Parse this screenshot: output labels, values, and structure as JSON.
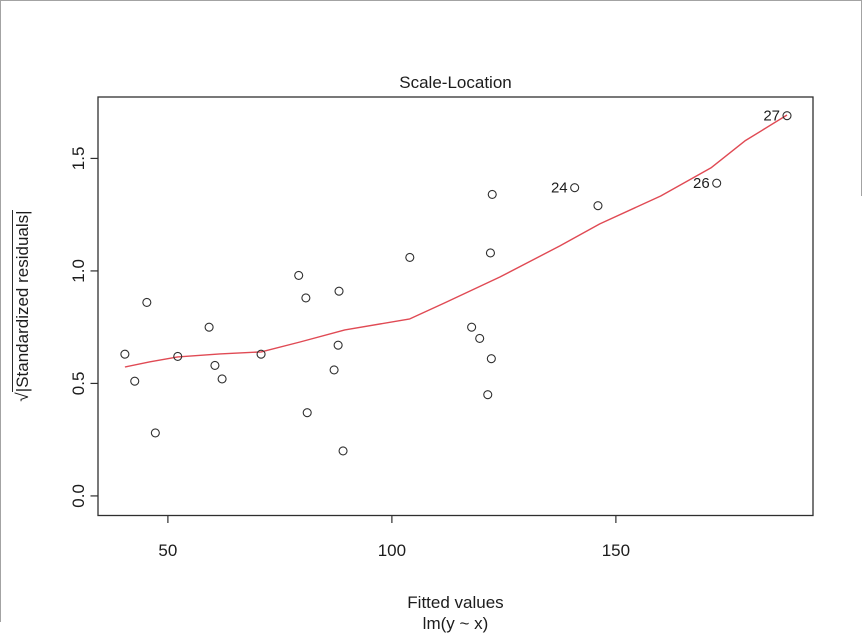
{
  "window": {
    "background": "#ffffff",
    "border_color": "#a3a3a3"
  },
  "chart_data": {
    "type": "scatter",
    "title": "Scale-Location",
    "xlabel": "Fitted values",
    "xlabel_sub": "lm(y ~ x)",
    "ylabel_radical": "√",
    "ylabel_text": "|Standardized residuals|",
    "grid": false,
    "xlim": [
      34.4,
      194.0
    ],
    "ylim": [
      -0.087,
      1.773
    ],
    "x_ticks": [
      {
        "value": 50,
        "label": "50"
      },
      {
        "value": 100,
        "label": "100"
      },
      {
        "value": 150,
        "label": "150"
      }
    ],
    "y_ticks": [
      {
        "value": 0.0,
        "label": "0.0"
      },
      {
        "value": 0.5,
        "label": "0.5"
      },
      {
        "value": 1.0,
        "label": "1.0"
      },
      {
        "value": 1.5,
        "label": "1.5"
      }
    ],
    "frame_color": "#2f2f2f",
    "text_color": "#1c1c1c",
    "point_style": {
      "shape": "open-circle",
      "radius": 4,
      "stroke": "#2f2f2f"
    },
    "points": [
      {
        "x": 40.4,
        "y": 0.63
      },
      {
        "x": 42.6,
        "y": 0.51
      },
      {
        "x": 45.3,
        "y": 0.86
      },
      {
        "x": 47.2,
        "y": 0.28
      },
      {
        "x": 52.2,
        "y": 0.62
      },
      {
        "x": 59.2,
        "y": 0.75
      },
      {
        "x": 60.5,
        "y": 0.58
      },
      {
        "x": 62.1,
        "y": 0.52
      },
      {
        "x": 70.8,
        "y": 0.63
      },
      {
        "x": 79.2,
        "y": 0.98
      },
      {
        "x": 80.8,
        "y": 0.88
      },
      {
        "x": 81.1,
        "y": 0.37
      },
      {
        "x": 87.1,
        "y": 0.56
      },
      {
        "x": 88.0,
        "y": 0.67
      },
      {
        "x": 88.2,
        "y": 0.91
      },
      {
        "x": 89.1,
        "y": 0.2
      },
      {
        "x": 104.0,
        "y": 1.06
      },
      {
        "x": 117.8,
        "y": 0.75
      },
      {
        "x": 119.6,
        "y": 0.7
      },
      {
        "x": 121.4,
        "y": 0.45
      },
      {
        "x": 122.0,
        "y": 1.08
      },
      {
        "x": 122.2,
        "y": 0.61
      },
      {
        "x": 122.4,
        "y": 1.34
      },
      {
        "x": 140.8,
        "y": 1.37,
        "label": "24"
      },
      {
        "x": 146.0,
        "y": 1.29
      },
      {
        "x": 172.5,
        "y": 1.39,
        "label": "26"
      },
      {
        "x": 188.2,
        "y": 1.69,
        "label": "27"
      }
    ],
    "smooth_line": {
      "color": "#e04a54",
      "points": [
        [
          40.4,
          0.573
        ],
        [
          46.0,
          0.596
        ],
        [
          52.2,
          0.618
        ],
        [
          61.6,
          0.631
        ],
        [
          70.8,
          0.64
        ],
        [
          79.5,
          0.684
        ],
        [
          89.5,
          0.738
        ],
        [
          104.0,
          0.787
        ],
        [
          111.8,
          0.858
        ],
        [
          124.1,
          0.973
        ],
        [
          137.5,
          1.111
        ],
        [
          146.4,
          1.209
        ],
        [
          160.0,
          1.333
        ],
        [
          171.2,
          1.458
        ],
        [
          178.8,
          1.578
        ],
        [
          188.2,
          1.693
        ]
      ]
    }
  }
}
